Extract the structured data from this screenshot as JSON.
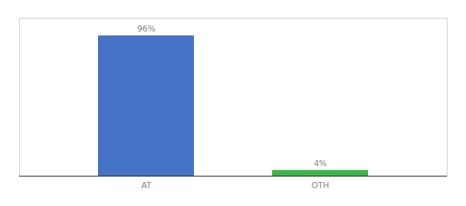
{
  "chart_data": {
    "type": "bar",
    "categories": [
      "AT",
      "OTH"
    ],
    "values": [
      96,
      4
    ],
    "value_labels": [
      "96%",
      "4%"
    ],
    "colors": [
      "#4472c4",
      "#3cb54a"
    ],
    "ylim": [
      0,
      108
    ],
    "data_labels": true,
    "tick_labels": "x",
    "grid": false
  }
}
